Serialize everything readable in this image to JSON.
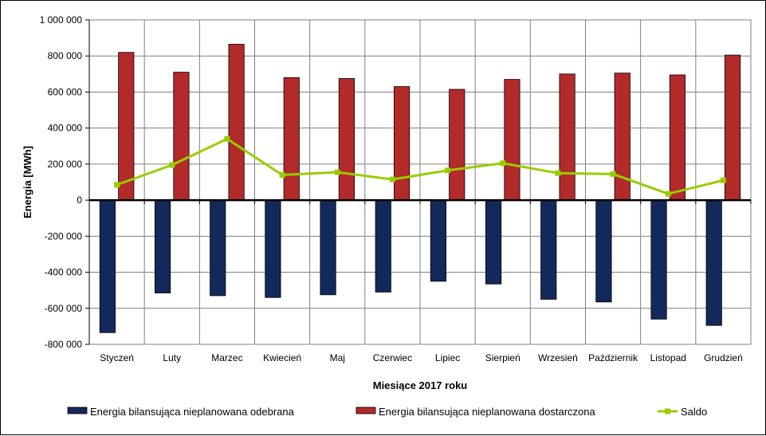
{
  "chart_data": {
    "type": "bar",
    "xlabel": "Miesiące 2017  roku",
    "ylabel": "Energia  [MWh]",
    "categories": [
      "Styczeń",
      "Luty",
      "Marzec",
      "Kwiecień",
      "Maj",
      "Czerwiec",
      "Lipiec",
      "Sierpień",
      "Wrzesień",
      "Październik",
      "Listopad",
      "Grudzień"
    ],
    "ylim": [
      -800000,
      1000000
    ],
    "yticks": [
      1000000,
      800000,
      600000,
      400000,
      200000,
      0,
      -200000,
      -400000,
      -600000,
      -800000
    ],
    "ytick_labels": [
      "1 000 000",
      "800 000",
      "600 000",
      "400 000",
      "200 000",
      "0",
      "-200 000",
      "-400 000",
      "-600 000",
      "-800 000"
    ],
    "grid": true,
    "legend_position": "bottom",
    "series": [
      {
        "name": "Energia bilansująca nieplanowana odebrana",
        "type": "bar",
        "color": "#13295B",
        "values": [
          -735000,
          -515000,
          -530000,
          -540000,
          -525000,
          -510000,
          -450000,
          -465000,
          -550000,
          -565000,
          -660000,
          -695000
        ]
      },
      {
        "name": "Energia bilansująca nieplanowana dostarczona",
        "type": "bar",
        "color": "#B22A2A",
        "values": [
          820000,
          710000,
          865000,
          680000,
          675000,
          630000,
          615000,
          670000,
          700000,
          705000,
          695000,
          805000
        ]
      },
      {
        "name": "Saldo",
        "type": "line",
        "color": "#99CC00",
        "values": [
          85000,
          195000,
          340000,
          140000,
          155000,
          115000,
          165000,
          205000,
          150000,
          145000,
          35000,
          110000
        ]
      }
    ]
  }
}
